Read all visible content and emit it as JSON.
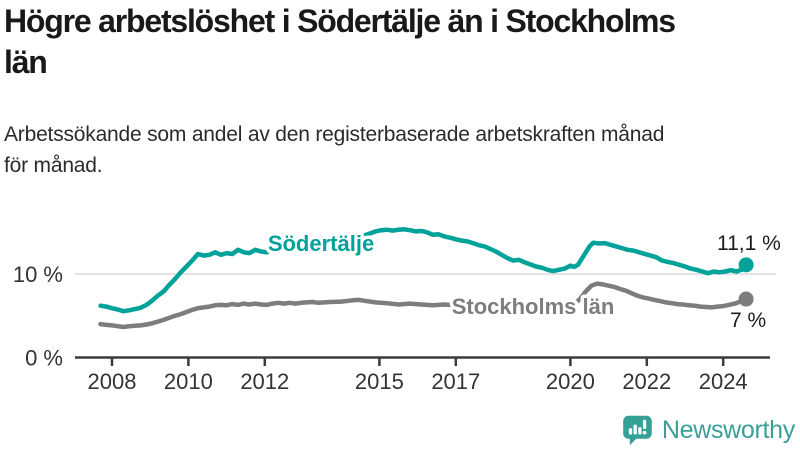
{
  "header": {
    "title_line1": "Högre arbetslöshet i Södertälje än i Stockholms",
    "title_line2": "län",
    "subtitle_line1": "Arbetssökande som andel av den registerbaserade arbetskraften månad",
    "subtitle_line2": "för månad."
  },
  "chart_data": {
    "type": "line",
    "title": "Högre arbetslöshet i Södertälje än i Stockholms län",
    "subtitle": "Arbetssökande som andel av den registerbaserade arbetskraften månad för månad.",
    "xlabel": "",
    "ylabel": "",
    "xlim": [
      2007.7,
      2025.2
    ],
    "ylim": [
      0,
      17
    ],
    "grid": "single horizontal gridline at 10 %",
    "legend_position": "inline-labels-on-lines",
    "axis_color": "#3c3c3c",
    "grid_color": "#d9d9d9",
    "tick_text_color": "#333333",
    "x_ticks": [
      {
        "year": 2008,
        "label": "2008"
      },
      {
        "year": 2010,
        "label": "2010"
      },
      {
        "year": 2012,
        "label": "2012"
      },
      {
        "year": 2015,
        "label": "2015"
      },
      {
        "year": 2017,
        "label": "2017"
      },
      {
        "year": 2020,
        "label": "2020"
      },
      {
        "year": 2022,
        "label": "2022"
      },
      {
        "year": 2024,
        "label": "2024"
      }
    ],
    "y_ticks": [
      {
        "value": 10,
        "label": "10 %"
      },
      {
        "value": 0,
        "label": "0 %"
      }
    ],
    "series": [
      {
        "name": "Södertälje",
        "color": "#00a29a",
        "end_label": "11,1 %",
        "end_value": 11.1,
        "points": [
          [
            2007.7,
            6.2
          ],
          [
            2007.85,
            6.1
          ],
          [
            2008.0,
            5.9
          ],
          [
            2008.15,
            5.75
          ],
          [
            2008.3,
            5.55
          ],
          [
            2008.45,
            5.65
          ],
          [
            2008.6,
            5.8
          ],
          [
            2008.75,
            5.95
          ],
          [
            2008.9,
            6.3
          ],
          [
            2009.05,
            6.8
          ],
          [
            2009.2,
            7.4
          ],
          [
            2009.35,
            7.9
          ],
          [
            2009.5,
            8.7
          ],
          [
            2009.65,
            9.4
          ],
          [
            2009.8,
            10.2
          ],
          [
            2009.95,
            10.9
          ],
          [
            2010.1,
            11.6
          ],
          [
            2010.25,
            12.4
          ],
          [
            2010.4,
            12.2
          ],
          [
            2010.55,
            12.3
          ],
          [
            2010.7,
            12.6
          ],
          [
            2010.85,
            12.3
          ],
          [
            2011.0,
            12.5
          ],
          [
            2011.15,
            12.4
          ],
          [
            2011.3,
            12.9
          ],
          [
            2011.45,
            12.6
          ],
          [
            2011.6,
            12.5
          ],
          [
            2011.75,
            12.9
          ],
          [
            2011.9,
            12.7
          ],
          [
            2012.05,
            12.6
          ],
          [
            2012.2,
            12.9
          ],
          [
            2012.35,
            13.1
          ],
          [
            2012.5,
            12.9
          ],
          [
            2012.65,
            13.2
          ],
          [
            2012.8,
            13.1
          ],
          [
            2012.95,
            13.0
          ],
          [
            2013.1,
            13.2
          ],
          [
            2013.25,
            13.35
          ],
          [
            2013.4,
            13.2
          ],
          [
            2013.55,
            13.3
          ],
          [
            2013.7,
            13.5
          ],
          [
            2013.85,
            13.45
          ],
          [
            2014.0,
            13.7
          ],
          [
            2014.15,
            13.9
          ],
          [
            2014.3,
            14.2
          ],
          [
            2014.45,
            14.45
          ],
          [
            2014.6,
            14.6
          ],
          [
            2014.75,
            14.85
          ],
          [
            2014.9,
            15.1
          ],
          [
            2015.05,
            15.25
          ],
          [
            2015.2,
            15.3
          ],
          [
            2015.35,
            15.2
          ],
          [
            2015.5,
            15.3
          ],
          [
            2015.65,
            15.35
          ],
          [
            2015.8,
            15.25
          ],
          [
            2015.95,
            15.1
          ],
          [
            2016.1,
            15.15
          ],
          [
            2016.25,
            15.0
          ],
          [
            2016.4,
            14.7
          ],
          [
            2016.55,
            14.75
          ],
          [
            2016.7,
            14.5
          ],
          [
            2016.85,
            14.35
          ],
          [
            2017.0,
            14.15
          ],
          [
            2017.15,
            14.0
          ],
          [
            2017.3,
            13.9
          ],
          [
            2017.45,
            13.7
          ],
          [
            2017.6,
            13.45
          ],
          [
            2017.75,
            13.3
          ],
          [
            2017.9,
            13.0
          ],
          [
            2018.05,
            12.7
          ],
          [
            2018.2,
            12.3
          ],
          [
            2018.35,
            11.9
          ],
          [
            2018.5,
            11.6
          ],
          [
            2018.65,
            11.7
          ],
          [
            2018.8,
            11.4
          ],
          [
            2018.95,
            11.15
          ],
          [
            2019.1,
            10.9
          ],
          [
            2019.25,
            10.75
          ],
          [
            2019.4,
            10.5
          ],
          [
            2019.55,
            10.35
          ],
          [
            2019.7,
            10.5
          ],
          [
            2019.85,
            10.65
          ],
          [
            2020.0,
            11.0
          ],
          [
            2020.1,
            10.85
          ],
          [
            2020.2,
            11.1
          ],
          [
            2020.35,
            12.2
          ],
          [
            2020.5,
            13.3
          ],
          [
            2020.6,
            13.75
          ],
          [
            2020.75,
            13.65
          ],
          [
            2020.9,
            13.7
          ],
          [
            2021.05,
            13.5
          ],
          [
            2021.2,
            13.3
          ],
          [
            2021.35,
            13.1
          ],
          [
            2021.5,
            12.9
          ],
          [
            2021.65,
            12.8
          ],
          [
            2021.8,
            12.6
          ],
          [
            2021.95,
            12.4
          ],
          [
            2022.1,
            12.2
          ],
          [
            2022.25,
            12.0
          ],
          [
            2022.4,
            11.6
          ],
          [
            2022.55,
            11.45
          ],
          [
            2022.7,
            11.3
          ],
          [
            2022.85,
            11.1
          ],
          [
            2023.0,
            10.9
          ],
          [
            2023.15,
            10.65
          ],
          [
            2023.3,
            10.5
          ],
          [
            2023.45,
            10.3
          ],
          [
            2023.6,
            10.1
          ],
          [
            2023.75,
            10.3
          ],
          [
            2023.9,
            10.2
          ],
          [
            2024.05,
            10.3
          ],
          [
            2024.2,
            10.45
          ],
          [
            2024.35,
            10.3
          ],
          [
            2024.5,
            10.55
          ],
          [
            2024.6,
            11.1
          ]
        ]
      },
      {
        "name": "Stockholms län",
        "color": "#7d7d7d",
        "end_label": "7 %",
        "end_value": 7.0,
        "points": [
          [
            2007.7,
            4.0
          ],
          [
            2007.85,
            3.9
          ],
          [
            2008.0,
            3.85
          ],
          [
            2008.15,
            3.75
          ],
          [
            2008.3,
            3.65
          ],
          [
            2008.45,
            3.75
          ],
          [
            2008.6,
            3.8
          ],
          [
            2008.75,
            3.85
          ],
          [
            2008.9,
            3.95
          ],
          [
            2009.05,
            4.1
          ],
          [
            2009.2,
            4.3
          ],
          [
            2009.35,
            4.5
          ],
          [
            2009.5,
            4.75
          ],
          [
            2009.65,
            5.0
          ],
          [
            2009.8,
            5.2
          ],
          [
            2009.95,
            5.45
          ],
          [
            2010.1,
            5.7
          ],
          [
            2010.25,
            5.9
          ],
          [
            2010.4,
            6.0
          ],
          [
            2010.55,
            6.1
          ],
          [
            2010.7,
            6.25
          ],
          [
            2010.85,
            6.3
          ],
          [
            2011.0,
            6.25
          ],
          [
            2011.15,
            6.4
          ],
          [
            2011.3,
            6.3
          ],
          [
            2011.45,
            6.45
          ],
          [
            2011.6,
            6.35
          ],
          [
            2011.75,
            6.45
          ],
          [
            2011.9,
            6.35
          ],
          [
            2012.05,
            6.3
          ],
          [
            2012.2,
            6.45
          ],
          [
            2012.35,
            6.55
          ],
          [
            2012.5,
            6.45
          ],
          [
            2012.65,
            6.55
          ],
          [
            2012.8,
            6.45
          ],
          [
            2012.95,
            6.55
          ],
          [
            2013.1,
            6.6
          ],
          [
            2013.25,
            6.65
          ],
          [
            2013.4,
            6.55
          ],
          [
            2013.7,
            6.65
          ],
          [
            2014.0,
            6.7
          ],
          [
            2014.3,
            6.85
          ],
          [
            2014.45,
            6.9
          ],
          [
            2014.6,
            6.8
          ],
          [
            2014.9,
            6.6
          ],
          [
            2015.2,
            6.5
          ],
          [
            2015.5,
            6.35
          ],
          [
            2015.8,
            6.45
          ],
          [
            2016.1,
            6.35
          ],
          [
            2016.4,
            6.25
          ],
          [
            2016.7,
            6.35
          ],
          [
            2017.0,
            6.25
          ],
          [
            2017.3,
            6.2
          ],
          [
            2017.6,
            6.3
          ],
          [
            2017.9,
            6.15
          ],
          [
            2018.2,
            6.1
          ],
          [
            2018.5,
            6.0
          ],
          [
            2018.8,
            6.1
          ],
          [
            2019.1,
            5.9
          ],
          [
            2019.4,
            5.95
          ],
          [
            2019.7,
            6.0
          ],
          [
            2019.9,
            6.1
          ],
          [
            2020.1,
            6.4
          ],
          [
            2020.25,
            7.0
          ],
          [
            2020.4,
            7.9
          ],
          [
            2020.55,
            8.6
          ],
          [
            2020.7,
            8.85
          ],
          [
            2020.85,
            8.75
          ],
          [
            2021.0,
            8.6
          ],
          [
            2021.15,
            8.45
          ],
          [
            2021.3,
            8.2
          ],
          [
            2021.45,
            8.0
          ],
          [
            2021.6,
            7.7
          ],
          [
            2021.75,
            7.4
          ],
          [
            2021.9,
            7.2
          ],
          [
            2022.05,
            7.05
          ],
          [
            2022.2,
            6.9
          ],
          [
            2022.35,
            6.75
          ],
          [
            2022.5,
            6.6
          ],
          [
            2022.65,
            6.5
          ],
          [
            2022.8,
            6.4
          ],
          [
            2022.95,
            6.35
          ],
          [
            2023.1,
            6.25
          ],
          [
            2023.25,
            6.2
          ],
          [
            2023.4,
            6.1
          ],
          [
            2023.55,
            6.05
          ],
          [
            2023.7,
            6.0
          ],
          [
            2023.85,
            6.1
          ],
          [
            2024.0,
            6.15
          ],
          [
            2024.15,
            6.3
          ],
          [
            2024.3,
            6.45
          ],
          [
            2024.45,
            6.7
          ],
          [
            2024.6,
            7.0
          ]
        ]
      }
    ]
  },
  "logo": {
    "text": "Newsworthy",
    "icon": "newsworthy-bar-chart-speech-bubble-icon",
    "icon_color": "#35a095",
    "text_color": "#3a9f97"
  }
}
